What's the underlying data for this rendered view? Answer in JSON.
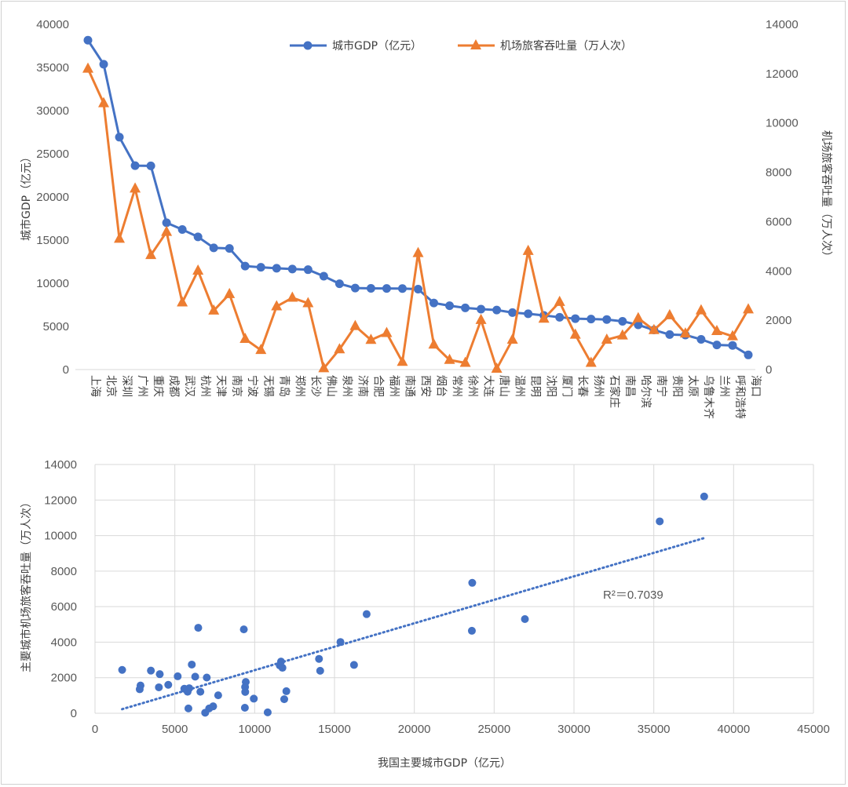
{
  "chart_data": [
    {
      "type": "line",
      "categories": [
        "上海",
        "北京",
        "深圳",
        "广州",
        "重庆",
        "成都",
        "武汉",
        "杭州",
        "天津",
        "南京",
        "宁波",
        "无锡",
        "青岛",
        "郑州",
        "长沙",
        "佛山",
        "泉州",
        "济南",
        "合肥",
        "福州",
        "南通",
        "西安",
        "烟台",
        "常州",
        "徐州",
        "大连",
        "唐山",
        "温州",
        "昆明",
        "沈阳",
        "厦门",
        "长春",
        "扬州",
        "石家庄",
        "南昌",
        "哈尔滨",
        "南宁",
        "贵阳",
        "太原",
        "乌鲁木齐",
        "兰州",
        "呼和浩特",
        "海口"
      ],
      "series": [
        {
          "name": "城市GDP（亿元）",
          "axis": "left",
          "color": "#4472C4",
          "marker": "circle",
          "values": [
            38155,
            35371,
            26927,
            23628,
            23605,
            17013,
            16223,
            15373,
            14104,
            14030,
            11985,
            11852,
            11741,
            11650,
            11574,
            10816,
            9946,
            9443,
            9409,
            9400,
            9387,
            9321,
            7715,
            7400,
            7150,
            7000,
            6900,
            6600,
            6466,
            6276,
            6062,
            5903,
            5850,
            5800,
            5594,
            5179,
            4588,
            4056,
            4000,
            3500,
            2850,
            2800,
            1700
          ]
        },
        {
          "name": "机场旅客吞吐量（万人次）",
          "axis": "right",
          "color": "#ED7D31",
          "marker": "triangle",
          "values": [
            12200,
            10800,
            5300,
            7340,
            4640,
            5580,
            2720,
            4010,
            2390,
            3060,
            1240,
            790,
            2560,
            2910,
            2690,
            50,
            820,
            1760,
            1200,
            1480,
            310,
            4720,
            1010,
            390,
            270,
            2010,
            30,
            1210,
            4810,
            2060,
            2740,
            1410,
            270,
            1210,
            1380,
            2080,
            1600,
            2200,
            1460,
            2400,
            1560,
            1350,
            2440
          ]
        }
      ],
      "y_left": {
        "label": "城市GDP（亿元）",
        "ylim": [
          0,
          40000
        ],
        "ticks": [
          "0",
          "5000",
          "10000",
          "15000",
          "20000",
          "25000",
          "30000",
          "35000",
          "40000"
        ]
      },
      "y_right": {
        "label": "机场旅客吞吐量（万人次）",
        "ylim": [
          0,
          14000
        ],
        "ticks": [
          "0",
          "2000",
          "4000",
          "6000",
          "8000",
          "10000",
          "12000",
          "14000"
        ]
      },
      "grid": false,
      "legend": "top-center"
    },
    {
      "type": "scatter",
      "xlabel": "我国主要城市GDP（亿元）",
      "ylabel": "主要城市机场旅客吞吐量（万人次）",
      "xlim": [
        0,
        45000
      ],
      "ylim": [
        0,
        14000
      ],
      "x_ticks": [
        "0",
        "5000",
        "10000",
        "15000",
        "20000",
        "25000",
        "30000",
        "35000",
        "40000",
        "45000"
      ],
      "y_ticks": [
        "0",
        "2000",
        "4000",
        "6000",
        "8000",
        "10000",
        "12000",
        "14000"
      ],
      "grid": true,
      "color": "#4472C4",
      "points": [
        [
          38155,
          12200
        ],
        [
          35371,
          10800
        ],
        [
          26927,
          5300
        ],
        [
          23628,
          7340
        ],
        [
          23605,
          4640
        ],
        [
          17013,
          5580
        ],
        [
          16223,
          2720
        ],
        [
          15373,
          4010
        ],
        [
          14104,
          2390
        ],
        [
          14030,
          3060
        ],
        [
          11985,
          1240
        ],
        [
          11852,
          790
        ],
        [
          11741,
          2560
        ],
        [
          11650,
          2910
        ],
        [
          11574,
          2690
        ],
        [
          10816,
          50
        ],
        [
          9946,
          820
        ],
        [
          9443,
          1760
        ],
        [
          9409,
          1200
        ],
        [
          9400,
          1480
        ],
        [
          9387,
          310
        ],
        [
          9321,
          4720
        ],
        [
          7715,
          1010
        ],
        [
          7400,
          390
        ],
        [
          7150,
          270
        ],
        [
          7000,
          2010
        ],
        [
          6900,
          30
        ],
        [
          6600,
          1210
        ],
        [
          6466,
          4810
        ],
        [
          6276,
          2060
        ],
        [
          6062,
          2740
        ],
        [
          5903,
          1410
        ],
        [
          5850,
          270
        ],
        [
          5800,
          1210
        ],
        [
          5594,
          1380
        ],
        [
          5179,
          2080
        ],
        [
          4588,
          1600
        ],
        [
          4056,
          2200
        ],
        [
          4000,
          1460
        ],
        [
          3500,
          2400
        ],
        [
          2850,
          1560
        ],
        [
          2800,
          1350
        ],
        [
          1700,
          2440
        ]
      ],
      "trendline": {
        "style": "dotted",
        "from": [
          1700,
          230
        ],
        "to": [
          38155,
          9860
        ],
        "r2_label": "R²＝0.7039"
      }
    }
  ]
}
